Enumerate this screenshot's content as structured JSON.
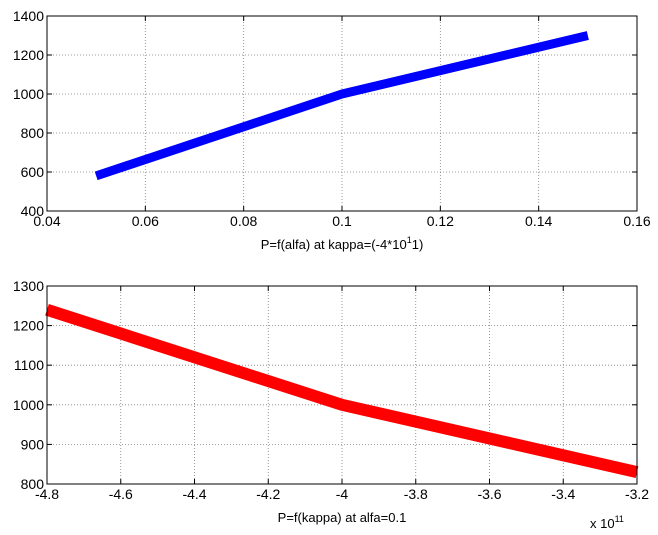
{
  "chart_data": [
    {
      "type": "line",
      "xlabel_parts": {
        "before": "P=f(alfa) at kappa=(-4*10",
        "sup": "1",
        "after": "1)"
      },
      "x": [
        0.05,
        0.1,
        0.15
      ],
      "series": [
        {
          "values": [
            580,
            1000,
            1300
          ],
          "color": "#0000ff"
        }
      ],
      "xlim": [
        0.04,
        0.16
      ],
      "ylim": [
        400,
        1400
      ],
      "xticks": [
        0.04,
        0.06,
        0.08,
        0.1,
        0.12,
        0.14,
        0.16
      ],
      "xtick_labels": [
        "0.04",
        "0.06",
        "0.08",
        "0.1",
        "0.12",
        "0.14",
        "0.16"
      ],
      "yticks": [
        400,
        600,
        800,
        1000,
        1200,
        1400
      ],
      "ytick_labels": [
        "400",
        "600",
        "800",
        "1000",
        "1200",
        "1400"
      ],
      "grid": true
    },
    {
      "type": "line",
      "xlabel": "P=f(kappa) at alfa=0.1",
      "x_multiplier": {
        "base": "x 10",
        "exp": "11"
      },
      "x": [
        -4.8,
        -4.0,
        -3.2
      ],
      "series": [
        {
          "values": [
            1240,
            1000,
            830
          ],
          "color": "#ff0000"
        }
      ],
      "xlim": [
        -4.8,
        -3.2
      ],
      "ylim": [
        800,
        1300
      ],
      "xticks": [
        -4.8,
        -4.6,
        -4.4,
        -4.2,
        -4.0,
        -3.8,
        -3.6,
        -3.4,
        -3.2
      ],
      "xtick_labels": [
        "-4.8",
        "-4.6",
        "-4.4",
        "-4.2",
        "-4",
        "-3.8",
        "-3.6",
        "-3.4",
        "-3.2"
      ],
      "yticks": [
        800,
        900,
        1000,
        1100,
        1200,
        1300
      ],
      "ytick_labels": [
        "800",
        "900",
        "1000",
        "1100",
        "1200",
        "1300"
      ],
      "grid": true
    }
  ]
}
